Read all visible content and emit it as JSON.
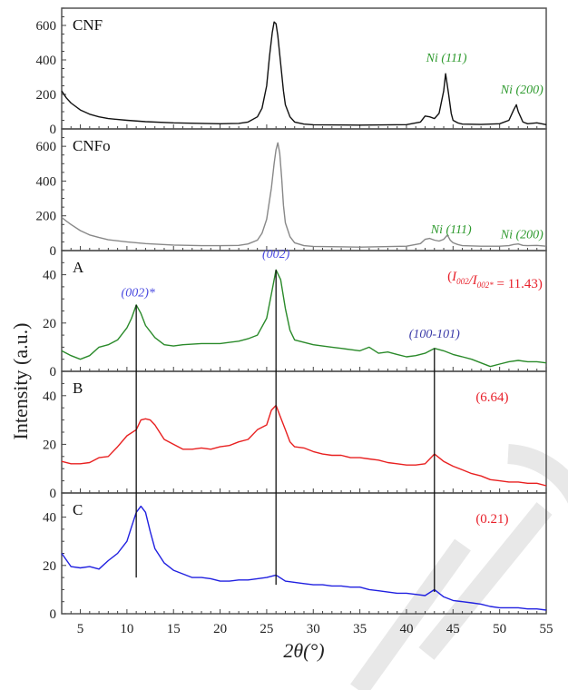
{
  "chart_data": {
    "type": "line",
    "title": "",
    "xlabel": "2θ(°)",
    "ylabel": "Intensity (a.u.)",
    "xlim": [
      3,
      55
    ],
    "xticks": [
      5,
      10,
      15,
      20,
      25,
      30,
      35,
      40,
      45,
      50,
      55
    ],
    "grid": false,
    "legend": "none",
    "watermark_color": "#e8e8e8",
    "panels": [
      {
        "label": "CNF",
        "color": "#111111",
        "ylim": [
          0,
          700
        ],
        "yticks": [
          0,
          200,
          400,
          600
        ],
        "series": {
          "x": [
            3,
            3.5,
            4,
            5,
            6,
            7,
            8,
            10,
            12,
            15,
            18,
            20,
            22,
            23,
            24,
            24.5,
            25,
            25.3,
            25.6,
            25.8,
            26,
            26.2,
            26.5,
            26.8,
            27,
            27.5,
            28,
            29,
            30,
            35,
            40,
            41.5,
            42,
            42.5,
            43,
            43.5,
            44,
            44.2,
            44.5,
            44.8,
            45,
            45.5,
            46,
            48,
            50,
            51,
            51.5,
            51.8,
            52,
            52.5,
            53,
            54,
            55
          ],
          "y": [
            220,
            180,
            150,
            110,
            85,
            70,
            60,
            50,
            42,
            35,
            32,
            30,
            32,
            40,
            70,
            120,
            250,
            420,
            560,
            620,
            610,
            540,
            380,
            220,
            140,
            70,
            40,
            28,
            24,
            22,
            25,
            40,
            75,
            70,
            60,
            90,
            220,
            320,
            210,
            90,
            50,
            35,
            28,
            26,
            30,
            50,
            110,
            140,
            100,
            40,
            30,
            35,
            25
          ]
        },
        "annotations": [
          {
            "text": "Ni (111)",
            "x": 44.3,
            "y": 390,
            "color": "#2e9a2e"
          },
          {
            "text": "Ni (200)",
            "x": 52.4,
            "y": 205,
            "color": "#2e9a2e"
          }
        ]
      },
      {
        "label": "CNFo",
        "color": "#888888",
        "ylim": [
          0,
          700
        ],
        "yticks": [
          0,
          200,
          400,
          600
        ],
        "series": {
          "x": [
            3,
            3.5,
            4,
            5,
            6,
            7,
            8,
            10,
            12,
            15,
            18,
            20,
            22,
            23,
            24,
            24.5,
            25,
            25.5,
            25.8,
            26,
            26.2,
            26.4,
            26.6,
            26.8,
            27,
            27.5,
            28,
            29,
            30,
            35,
            40,
            41.5,
            42,
            42.5,
            43,
            43.5,
            44,
            44.4,
            44.7,
            45,
            45.5,
            46,
            48,
            50,
            51,
            51.5,
            52,
            52.5,
            53,
            54,
            55
          ],
          "y": [
            190,
            170,
            150,
            115,
            90,
            75,
            62,
            50,
            40,
            32,
            28,
            28,
            30,
            38,
            60,
            100,
            180,
            360,
            500,
            580,
            620,
            560,
            420,
            260,
            160,
            80,
            45,
            28,
            24,
            20,
            25,
            40,
            65,
            70,
            60,
            55,
            65,
            90,
            60,
            45,
            35,
            28,
            25,
            25,
            28,
            35,
            38,
            30,
            28,
            30,
            25
          ]
        },
        "annotations": [
          {
            "text": "Ni (111)",
            "x": 44.8,
            "y": 100,
            "color": "#2e9a2e"
          },
          {
            "text": "Ni (200)",
            "x": 52.4,
            "y": 70,
            "color": "#2e9a2e"
          }
        ]
      },
      {
        "label": "A",
        "color": "#2a8a2a",
        "ylim": [
          0,
          50
        ],
        "yticks": [
          0,
          20,
          40
        ],
        "series": {
          "x": [
            3,
            4,
            5,
            6,
            7,
            8,
            9,
            10,
            10.5,
            11,
            11.5,
            12,
            13,
            14,
            15,
            16,
            18,
            20,
            22,
            23,
            24,
            25,
            25.5,
            26,
            26.5,
            27,
            27.5,
            28,
            29,
            30,
            31,
            32,
            33,
            34,
            35,
            36,
            37,
            38,
            39,
            40,
            41,
            42,
            43,
            44,
            45,
            46,
            47,
            48,
            49,
            50,
            51,
            52,
            53,
            54,
            55
          ],
          "y": [
            8.5,
            6.5,
            5,
            6.5,
            10,
            11,
            13,
            18,
            22,
            27.5,
            24,
            19,
            14,
            11,
            10.5,
            11,
            11.5,
            11.5,
            12.5,
            13.5,
            15,
            22,
            32,
            42,
            38,
            26,
            17,
            13,
            12,
            11,
            10.5,
            10,
            9.5,
            9,
            8.5,
            10,
            7.5,
            8,
            7,
            6,
            6.5,
            7.5,
            9.5,
            8.5,
            7,
            6,
            5,
            3.5,
            2,
            3,
            4,
            4.5,
            4,
            4,
            3.5
          ]
        },
        "annotations": [
          {
            "text": "(002)*",
            "x": 11.2,
            "y": 31,
            "color": "#4a4ae0"
          },
          {
            "text": "(002)",
            "x": 26,
            "y": 47,
            "color": "#4a4ae0"
          },
          {
            "text": "(100-101)",
            "x": 43,
            "y": 14,
            "color": "#3a3aa8"
          }
        ],
        "ratio_label": "(I002/I002* = 11.43)",
        "ratio": {
          "prefix": "(",
          "i1": "I",
          "s1": "002",
          "slash": "/",
          "i2": "I",
          "s2": "002*",
          "suffix": " = 11.43)"
        }
      },
      {
        "label": "B",
        "color": "#e82020",
        "ylim": [
          0,
          50
        ],
        "yticks": [
          0,
          20,
          40
        ],
        "series": {
          "x": [
            3,
            4,
            5,
            6,
            7,
            8,
            9,
            10,
            11,
            11.5,
            12,
            12.5,
            13,
            14,
            15,
            16,
            17,
            18,
            19,
            20,
            21,
            22,
            23,
            24,
            25,
            25.5,
            26,
            26.5,
            27,
            27.5,
            28,
            29,
            30,
            31,
            32,
            33,
            34,
            35,
            36,
            37,
            38,
            39,
            40,
            41,
            42,
            43,
            44,
            45,
            46,
            47,
            48,
            49,
            50,
            51,
            52,
            53,
            54,
            55
          ],
          "y": [
            13,
            12,
            12,
            12.5,
            14.5,
            15,
            19,
            23.5,
            26,
            30,
            30.5,
            30,
            28,
            22,
            20,
            18,
            18,
            18.5,
            18,
            19,
            19.5,
            21,
            22,
            26,
            28,
            34,
            36,
            31,
            26,
            21,
            19,
            18.5,
            17,
            16,
            15.5,
            15.5,
            14.5,
            14.5,
            14,
            13.5,
            12.5,
            12,
            11.5,
            11.5,
            12,
            16,
            13,
            11,
            9.5,
            8,
            7,
            5.5,
            5,
            4.5,
            4.5,
            4,
            4,
            3
          ]
        },
        "annotations": [],
        "ratio_label": "(6.64)"
      },
      {
        "label": "C",
        "color": "#2020e0",
        "ylim": [
          0,
          50
        ],
        "yticks": [
          0,
          20,
          40
        ],
        "series": {
          "x": [
            3,
            4,
            5,
            6,
            7,
            8,
            9,
            10,
            10.5,
            11,
            11.5,
            12,
            12.5,
            13,
            14,
            15,
            16,
            17,
            18,
            19,
            20,
            21,
            22,
            23,
            24,
            25,
            26,
            27,
            28,
            29,
            30,
            31,
            32,
            33,
            34,
            35,
            36,
            37,
            38,
            39,
            40,
            41,
            42,
            43,
            44,
            45,
            46,
            47,
            48,
            49,
            50,
            51,
            52,
            53,
            54,
            55
          ],
          "y": [
            25,
            19.5,
            19,
            19.5,
            18.5,
            22,
            25,
            30,
            36,
            42,
            44.5,
            42,
            34,
            27,
            21,
            18,
            16.5,
            15,
            15,
            14.5,
            13.5,
            13.5,
            14,
            14,
            14.5,
            15,
            16,
            13.5,
            13,
            12.5,
            12,
            12,
            11.5,
            11.5,
            11,
            11,
            10,
            9.5,
            9,
            8.5,
            8.5,
            8,
            7.5,
            10,
            7,
            5.5,
            5,
            4.5,
            4,
            3,
            2.5,
            2.5,
            2.5,
            2,
            2,
            1.5
          ]
        },
        "annotations": [],
        "ratio_label": "(0.21)"
      }
    ],
    "reference_lines": [
      {
        "x": 11,
        "from_panel": 2,
        "from_y": 27.5,
        "to_panel": 4,
        "to_y": 15
      },
      {
        "x": 26,
        "from_panel": 2,
        "from_y": 42,
        "to_panel": 4,
        "to_y": 12
      },
      {
        "x": 43,
        "from_panel": 2,
        "from_y": 9.5,
        "to_panel": 4,
        "to_y": 9
      }
    ]
  }
}
